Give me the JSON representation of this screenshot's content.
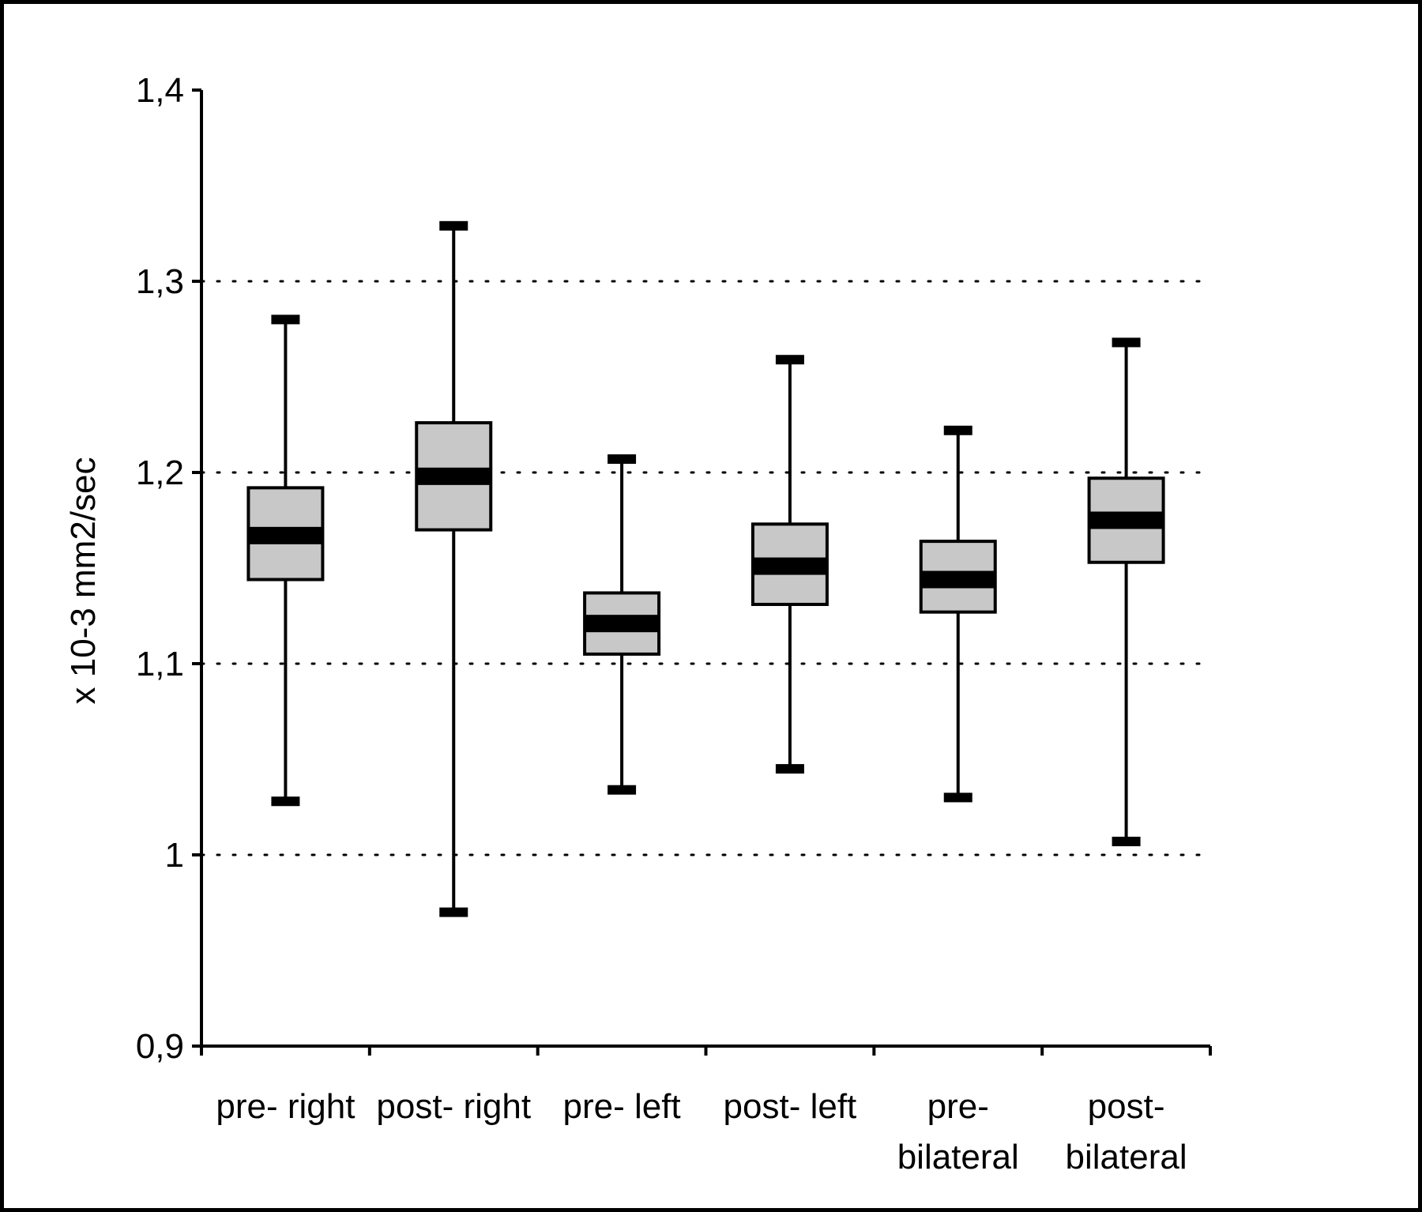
{
  "chart_data": {
    "type": "boxplot",
    "ylabel": "x 10-3 mm2/sec",
    "ylim": [
      0.9,
      1.4
    ],
    "yticks": [
      {
        "value": 0.9,
        "label": "0,9"
      },
      {
        "value": 1.0,
        "label": "1"
      },
      {
        "value": 1.1,
        "label": "1,1"
      },
      {
        "value": 1.2,
        "label": "1,2"
      },
      {
        "value": 1.3,
        "label": "1,3"
      },
      {
        "value": 1.4,
        "label": "1,4"
      }
    ],
    "gridlines": [
      1.0,
      1.1,
      1.2,
      1.3
    ],
    "grid_style": "dotted",
    "box_fill": "#c8c8c8",
    "categories": [
      {
        "label_lines": [
          "pre- right"
        ],
        "whisker_low": 1.028,
        "q1": 1.144,
        "median": 1.167,
        "q3": 1.192,
        "whisker_high": 1.28
      },
      {
        "label_lines": [
          "post- right"
        ],
        "whisker_low": 0.97,
        "q1": 1.17,
        "median": 1.198,
        "q3": 1.226,
        "whisker_high": 1.329
      },
      {
        "label_lines": [
          "pre- left"
        ],
        "whisker_low": 1.034,
        "q1": 1.105,
        "median": 1.121,
        "q3": 1.137,
        "whisker_high": 1.207
      },
      {
        "label_lines": [
          "post- left"
        ],
        "whisker_low": 1.045,
        "q1": 1.131,
        "median": 1.151,
        "q3": 1.173,
        "whisker_high": 1.259
      },
      {
        "label_lines": [
          "pre-",
          "bilateral"
        ],
        "whisker_low": 1.03,
        "q1": 1.127,
        "median": 1.144,
        "q3": 1.164,
        "whisker_high": 1.222
      },
      {
        "label_lines": [
          "post-",
          "bilateral"
        ],
        "whisker_low": 1.007,
        "q1": 1.153,
        "median": 1.175,
        "q3": 1.197,
        "whisker_high": 1.268
      }
    ]
  }
}
